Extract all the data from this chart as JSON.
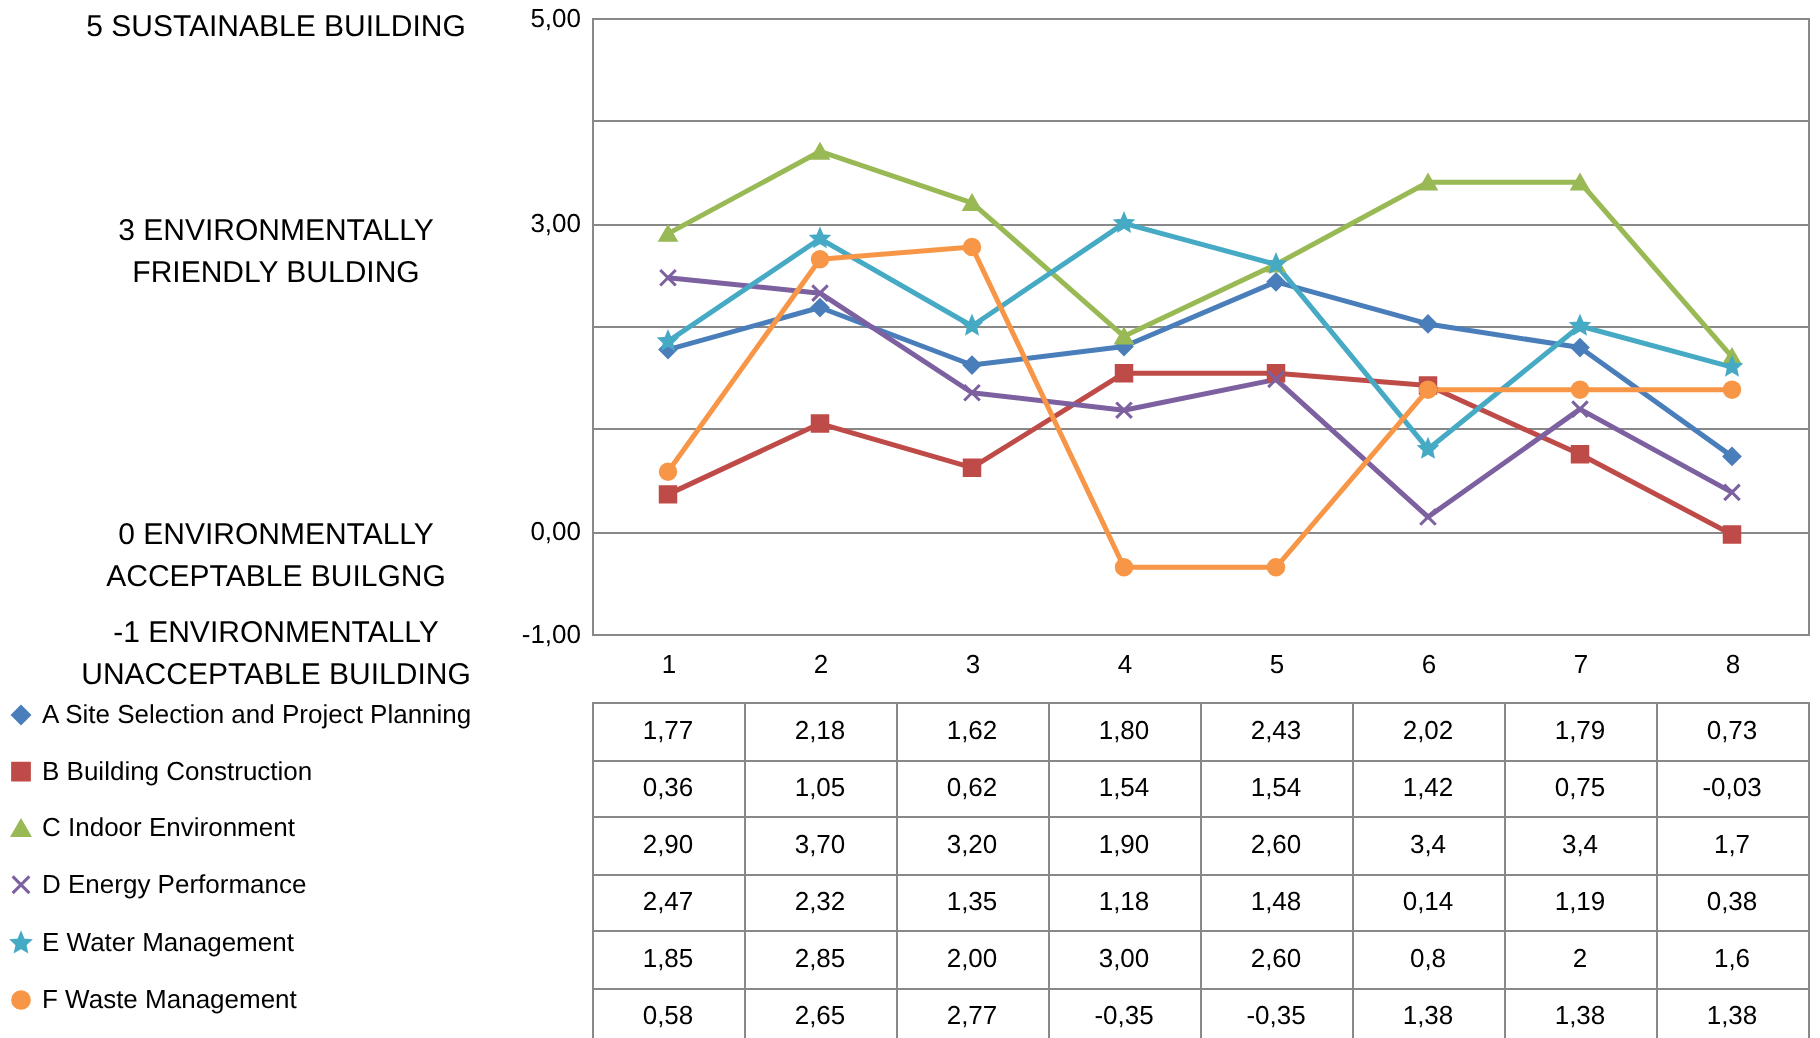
{
  "chart_data": {
    "type": "line",
    "categories": [
      "1",
      "2",
      "3",
      "4",
      "5",
      "6",
      "7",
      "8"
    ],
    "ylim": [
      -1,
      5
    ],
    "yticks": [
      {
        "value": 5,
        "label": "5,00"
      },
      {
        "value": 4,
        "label": null
      },
      {
        "value": 3,
        "label": "3,00"
      },
      {
        "value": 2,
        "label": null
      },
      {
        "value": 1,
        "label": null
      },
      {
        "value": 0,
        "label": "0,00"
      },
      {
        "value": -1,
        "label": "-1,00"
      }
    ],
    "grid": "y",
    "legend": "bottom left",
    "annotations": [
      "5 SUSTAINABLE BUILDING",
      "3 ENVIRONMENTALLY\nFRIENDLY BULDING",
      "0 ENVIRONMENTALLY\nACCEPTABLE BUILGNG",
      "-1 ENVIRONMENTALLY\nUNACCEPTABLE BUILDING"
    ],
    "series": [
      {
        "name": "A Site Selection and Project Planning",
        "color": "#4a7ebb",
        "marker": "diamond",
        "values": [
          1.77,
          2.18,
          1.62,
          1.8,
          2.43,
          2.02,
          1.79,
          0.73
        ],
        "value_labels": [
          "1,77",
          "2,18",
          "1,62",
          "1,80",
          "2,43",
          "2,02",
          "1,79",
          "0,73"
        ]
      },
      {
        "name": "B Building Construction",
        "color": "#be4b48",
        "marker": "square",
        "values": [
          0.36,
          1.05,
          0.62,
          1.54,
          1.54,
          1.42,
          0.75,
          -0.03
        ],
        "value_labels": [
          "0,36",
          "1,05",
          "0,62",
          "1,54",
          "1,54",
          "1,42",
          "0,75",
          "-0,03"
        ]
      },
      {
        "name": "C Indoor Environment",
        "color": "#98b954",
        "marker": "triangle",
        "values": [
          2.9,
          3.7,
          3.2,
          1.9,
          2.6,
          3.4,
          3.4,
          1.7
        ],
        "value_labels": [
          "2,90",
          "3,70",
          "3,20",
          "1,90",
          "2,60",
          "3,4",
          "3,4",
          "1,7"
        ]
      },
      {
        "name": "D Energy Performance",
        "color": "#7d60a0",
        "marker": "cross",
        "values": [
          2.47,
          2.32,
          1.35,
          1.18,
          1.48,
          0.14,
          1.19,
          0.38
        ],
        "value_labels": [
          "2,47",
          "2,32",
          "1,35",
          "1,18",
          "1,48",
          "0,14",
          "1,19",
          "0,38"
        ]
      },
      {
        "name": "E Water Management",
        "color": "#46aac5",
        "marker": "star",
        "values": [
          1.85,
          2.85,
          2.0,
          3.0,
          2.6,
          0.8,
          2,
          1.6
        ],
        "value_labels": [
          "1,85",
          "2,85",
          "2,00",
          "3,00",
          "2,60",
          "0,8",
          "2",
          "1,6"
        ]
      },
      {
        "name": "F Waste Management",
        "color": "#f79646",
        "marker": "circle",
        "values": [
          0.58,
          2.65,
          2.77,
          -0.35,
          -0.35,
          1.38,
          1.38,
          1.38
        ],
        "value_labels": [
          "0,58",
          "2,65",
          "2,77",
          "-0,35",
          "-0,35",
          "1,38",
          "1,38",
          "1,38"
        ]
      }
    ]
  }
}
